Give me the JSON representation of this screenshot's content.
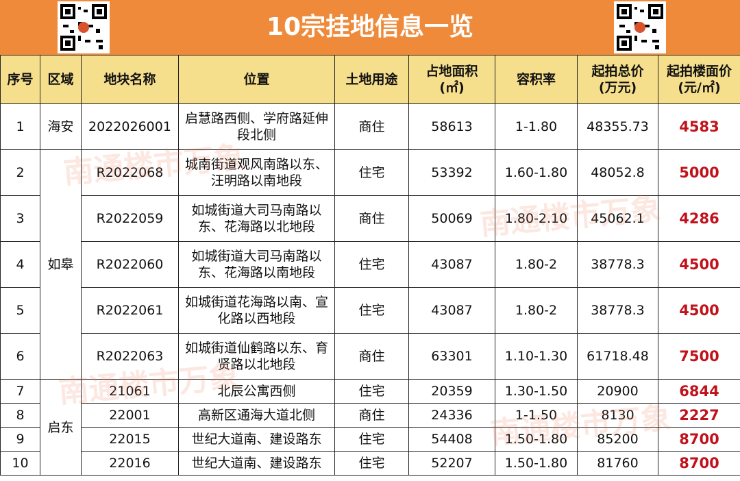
{
  "header": {
    "title": "10宗挂地信息一览"
  },
  "watermark": "南通楼市万象",
  "table": {
    "columns": [
      "序号",
      "区域",
      "地块名称",
      "位置",
      "土地用途",
      "占地面积\n(㎡)",
      "容积率",
      "起拍总价\n(万元)",
      "起拍楼面价\n(元/㎡)"
    ],
    "groups": [
      {
        "region": "海安",
        "rows": [
          [
            "1",
            "2022026001",
            "启慧路西侧、学府路延伸段北侧",
            "商住",
            58613,
            "1-1.80",
            48355.73,
            4583
          ]
        ]
      },
      {
        "region": "如皋",
        "rows": [
          [
            "2",
            "R2022068",
            "城南街道观风南路以东、汪明路以南地段",
            "住宅",
            53392,
            "1.60-1.80",
            48052.8,
            5000
          ],
          [
            "3",
            "R2022059",
            "如城街道大司马南路以东、花海路以北地段",
            "商住",
            50069,
            "1.80-2.10",
            45062.1,
            4286
          ],
          [
            "4",
            "R2022060",
            "如城街道大司马南路以东、花海路以南地段",
            "住宅",
            43087,
            "1.80-2",
            38778.3,
            4500
          ],
          [
            "5",
            "R2022061",
            "如城街道花海路以南、宣化路以西地段",
            "住宅",
            43087,
            "1.80-2",
            38778.3,
            4500
          ],
          [
            "6",
            "R2022063",
            "如城街道仙鹤路以东、育贤路以北地段",
            "商住",
            63301,
            "1.10-1.30",
            61718.48,
            7500
          ]
        ]
      },
      {
        "region": "启东",
        "rows": [
          [
            "7",
            "21061",
            "北辰公寓西侧",
            "住宅",
            20359,
            "1.30-1.50",
            20900,
            6844
          ],
          [
            "8",
            "22001",
            "高新区通海大道北侧",
            "商住",
            24336,
            "1-1.50",
            8130,
            2227
          ],
          [
            "9",
            "22015",
            "世纪大道南、建设路东",
            "住宅",
            54408,
            "1.50-1.80",
            85200,
            8700
          ],
          [
            "10",
            "22016",
            "世纪大道南、建设路东",
            "住宅",
            52207,
            "1.50-1.80",
            81760,
            8700
          ]
        ]
      }
    ]
  }
}
